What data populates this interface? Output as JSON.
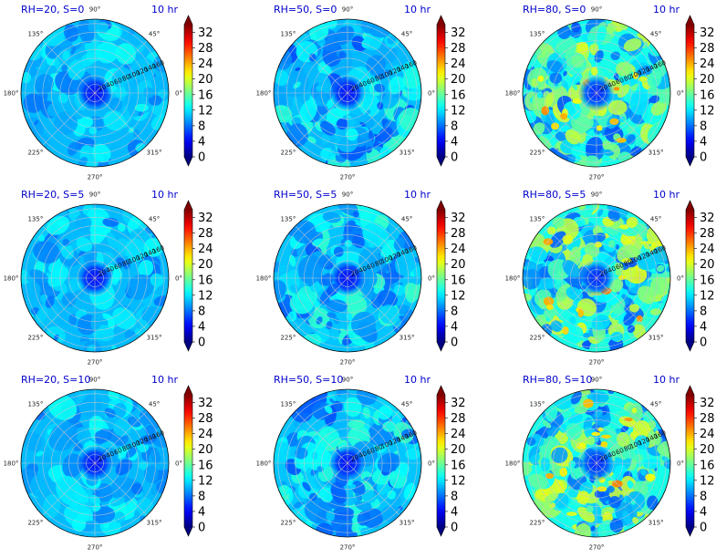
{
  "chart_data": {
    "type": "heatmap",
    "projection": "polar",
    "time_label": "10 hr",
    "angle_tick_labels": [
      "0°",
      "45°",
      "90°",
      "135°",
      "180°",
      "225°",
      "270°",
      "315°"
    ],
    "radial_tick_labels": [
      "20",
      "40",
      "60",
      "80",
      "100",
      "120",
      "140",
      "160"
    ],
    "radial_range": [
      0,
      170
    ],
    "colorbar": {
      "colormap": "jet",
      "range": [
        0,
        34
      ],
      "ticks": [
        "0",
        "4",
        "8",
        "12",
        "16",
        "20",
        "24",
        "28",
        "32"
      ],
      "extend": "both"
    },
    "grid": true,
    "panels": [
      {
        "title": "RH=20, S=0",
        "mean_level": 10.5,
        "variability": 1.2,
        "center_min": 5
      },
      {
        "title": "RH=50, S=0",
        "mean_level": 10.5,
        "variability": 1.8,
        "center_min": 5
      },
      {
        "title": "RH=80, S=0",
        "mean_level": 13.5,
        "variability": 3.0,
        "center_min": 6
      },
      {
        "title": "RH=20, S=5",
        "mean_level": 10.5,
        "variability": 1.2,
        "center_min": 5
      },
      {
        "title": "RH=50, S=5",
        "mean_level": 10.8,
        "variability": 1.8,
        "center_min": 5
      },
      {
        "title": "RH=80, S=5",
        "mean_level": 13.5,
        "variability": 3.2,
        "center_min": 6
      },
      {
        "title": "RH=20, S=10",
        "mean_level": 10.5,
        "variability": 1.2,
        "center_min": 5
      },
      {
        "title": "RH=50, S=10",
        "mean_level": 10.8,
        "variability": 1.8,
        "center_min": 5
      },
      {
        "title": "RH=80, S=10",
        "mean_level": 13.5,
        "variability": 3.2,
        "center_min": 6
      }
    ]
  }
}
